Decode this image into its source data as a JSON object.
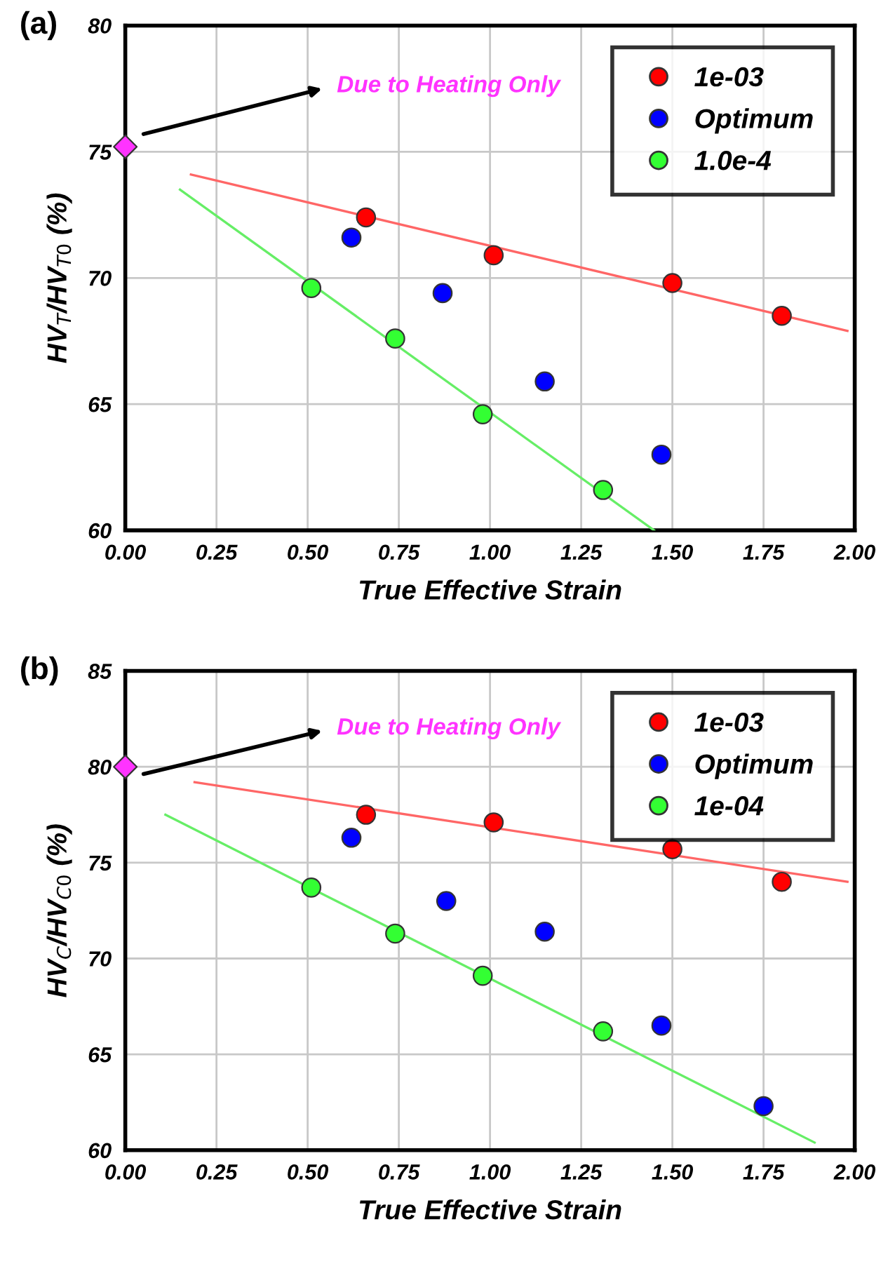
{
  "chart_data": [
    {
      "type": "scatter",
      "xlabel": "True Effective Strain",
      "ylabel": "HV$_{T}$/HV$_{T0}$ (%)",
      "xlim": [
        0,
        2
      ],
      "xticks": [
        {
          "value": 0,
          "label": "0.00"
        },
        {
          "value": 0.25,
          "label": "0.25"
        },
        {
          "value": 0.5,
          "label": "0.50"
        },
        {
          "value": 0.75,
          "label": "0.75"
        },
        {
          "value": 1,
          "label": "1.00"
        },
        {
          "value": 1.25,
          "label": "1.25"
        },
        {
          "value": 1.5,
          "label": "1.50"
        },
        {
          "value": 1.75,
          "label": "1.75"
        },
        {
          "value": 2,
          "label": "2.00"
        }
      ],
      "ylim": [
        60,
        80
      ],
      "yticks": [
        60,
        65,
        70,
        75,
        80
      ],
      "grid": true,
      "legend": "top right",
      "marker": "circle",
      "annotations": [
        "(a)",
        "Due to Heating Only"
      ],
      "series": [
        {
          "name": "1e-03",
          "color": "#ff0000",
          "x": [
            0.66,
            1.01,
            1.5,
            1.8
          ],
          "values": [
            72.4,
            70.9,
            69.8,
            68.5
          ]
        },
        {
          "name": "Optimum",
          "color": "#0000ff",
          "x": [
            0.62,
            0.87,
            1.15,
            1.47
          ],
          "values": [
            71.6,
            69.4,
            65.9,
            63.0
          ]
        },
        {
          "name": "1.0e-4",
          "color": "#33ff33",
          "x": [
            0.51,
            0.74,
            0.98,
            1.31
          ],
          "values": [
            69.6,
            67.6,
            64.6,
            61.6
          ]
        },
        {
          "type": "scatter",
          "marker": "diamond",
          "color": "#ff33ff",
          "x": [
            0
          ],
          "values": [
            75.2
          ]
        },
        {
          "type": "line",
          "marker": "none",
          "color": "#ff6666",
          "x": [
            0.18,
            1.98
          ],
          "values": [
            74.1,
            67.9
          ]
        },
        {
          "type": "line",
          "marker": "none",
          "color": "#66ee66",
          "x": [
            0.15,
            1.45
          ],
          "values": [
            73.5,
            60.0
          ]
        }
      ]
    },
    {
      "type": "scatter",
      "xlabel": "True Effective Strain",
      "ylabel": "HV$_{C}$/HV$_{C0}$ (%)",
      "xlim": [
        0,
        2
      ],
      "xticks": [
        {
          "value": 0,
          "label": "0.00"
        },
        {
          "value": 0.25,
          "label": "0.25"
        },
        {
          "value": 0.5,
          "label": "0.50"
        },
        {
          "value": 0.75,
          "label": "0.75"
        },
        {
          "value": 1,
          "label": "1.00"
        },
        {
          "value": 1.25,
          "label": "1.25"
        },
        {
          "value": 1.5,
          "label": "1.50"
        },
        {
          "value": 1.75,
          "label": "1.75"
        },
        {
          "value": 2,
          "label": "2.00"
        }
      ],
      "ylim": [
        60,
        85
      ],
      "yticks": [
        60,
        65,
        70,
        75,
        80,
        85
      ],
      "grid": true,
      "legend": "top right",
      "marker": "circle",
      "annotations": [
        "(b)",
        "Due to Heating Only"
      ],
      "series": [
        {
          "name": "1e-03",
          "color": "#ff0000",
          "x": [
            0.66,
            1.01,
            1.5,
            1.8
          ],
          "values": [
            77.5,
            77.1,
            75.7,
            74.0
          ]
        },
        {
          "name": "Optimum",
          "color": "#0000ff",
          "x": [
            0.62,
            0.88,
            1.15,
            1.47,
            1.75
          ],
          "values": [
            76.3,
            73.0,
            71.4,
            66.5,
            62.3
          ]
        },
        {
          "name": "1e-04",
          "color": "#33ff33",
          "x": [
            0.51,
            0.74,
            0.98,
            1.31
          ],
          "values": [
            73.7,
            71.3,
            69.1,
            66.2
          ]
        },
        {
          "type": "scatter",
          "marker": "diamond",
          "color": "#ff33ff",
          "x": [
            0
          ],
          "values": [
            80
          ]
        },
        {
          "type": "line",
          "marker": "none",
          "color": "#ff6666",
          "x": [
            0.19,
            1.98
          ],
          "values": [
            79.2,
            74.0
          ]
        },
        {
          "type": "line",
          "marker": "none",
          "color": "#66ee66",
          "x": [
            0.11,
            1.89
          ],
          "values": [
            77.5,
            60.4
          ]
        }
      ]
    }
  ]
}
